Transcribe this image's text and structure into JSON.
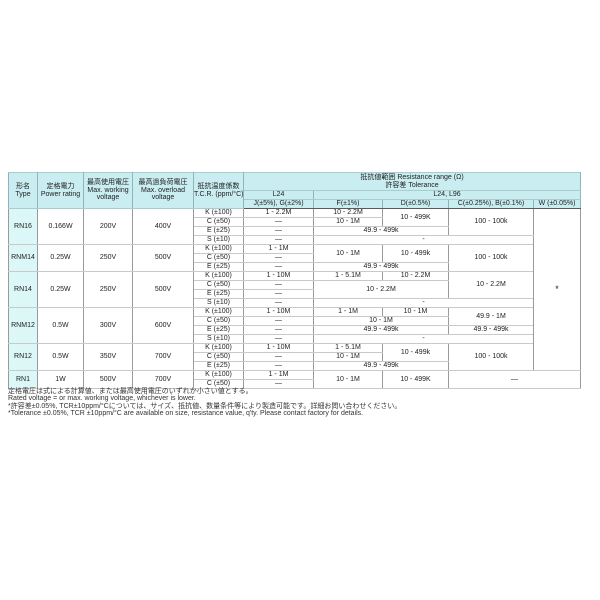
{
  "table": {
    "header": {
      "type_ja": "形名",
      "type_en": "Type",
      "power_ja": "定格電力",
      "power_en": "Power rating",
      "working_ja": "最高使用電圧",
      "working_en1": "Max. working",
      "working_en2": "voltage",
      "overload_ja": "最高過負荷電圧",
      "overload_en1": "Max. overload",
      "overload_en2": "voltage",
      "tcr_ja": "抵抗温度係数",
      "tcr_en": "T.C.R. (ppm/°C)",
      "range_title": "抵抗値範囲 Resistance range (Ω)",
      "tolerance_title": "許容差 Tolerance",
      "group_l24": "L24",
      "group_l24_l96": "L24, L96",
      "tol_jg": "J(±5%), G(±2%)",
      "tol_f": "F(±1%)",
      "tol_d": "D(±0.5%)",
      "tol_cb": "C(±0.25%), B(±0.1%)",
      "tol_w": "W (±0.05%)"
    },
    "rows": [
      {
        "group": true,
        "cells": [
          {
            "t": "RN16",
            "rs": 4,
            "c": "type"
          },
          {
            "t": "0.166W",
            "rs": 4
          },
          {
            "t": "200V",
            "rs": 4
          },
          {
            "t": "400V",
            "rs": 4
          },
          {
            "t": "K (±100)"
          },
          {
            "t": "1 - 2.2M"
          },
          {
            "t": "10 - 2.2M"
          },
          {
            "t": "10 - 499K",
            "rs": 2
          },
          {
            "t": "100 - 100k",
            "rs": 3
          },
          {
            "t": "*",
            "rs": 18,
            "c": "star"
          }
        ]
      },
      {
        "cells": [
          {
            "t": "C (±50)"
          },
          {
            "t": "—"
          },
          {
            "t": "10 - 1M"
          }
        ]
      },
      {
        "cells": [
          {
            "t": "E (±25)"
          },
          {
            "t": "—"
          },
          {
            "t": "49.9 - 499k",
            "cs": 2
          }
        ]
      },
      {
        "cells": [
          {
            "t": "S (±10)"
          },
          {
            "t": "—"
          },
          {
            "t": "-",
            "cs": 3
          }
        ]
      },
      {
        "group": true,
        "cells": [
          {
            "t": "RNM14",
            "rs": 3,
            "c": "type"
          },
          {
            "t": "0.25W",
            "rs": 3
          },
          {
            "t": "250V",
            "rs": 3
          },
          {
            "t": "500V",
            "rs": 3
          },
          {
            "t": "K (±100)"
          },
          {
            "t": "1 - 1M"
          },
          {
            "t": "10 - 1M",
            "rs": 2
          },
          {
            "t": "10 - 499k",
            "rs": 2
          },
          {
            "t": "100 - 100k",
            "rs": 3
          }
        ]
      },
      {
        "cells": [
          {
            "t": "C (±50)"
          },
          {
            "t": "—"
          }
        ]
      },
      {
        "cells": [
          {
            "t": "E (±25)"
          },
          {
            "t": "—"
          },
          {
            "t": "49.9 - 499k",
            "cs": 2
          }
        ]
      },
      {
        "group": true,
        "cells": [
          {
            "t": "RN14",
            "rs": 4,
            "c": "type"
          },
          {
            "t": "0.25W",
            "rs": 4
          },
          {
            "t": "250V",
            "rs": 4
          },
          {
            "t": "500V",
            "rs": 4
          },
          {
            "t": "K (±100)"
          },
          {
            "t": "1 - 10M"
          },
          {
            "t": "1 - 5.1M"
          },
          {
            "t": "10 - 2.2M"
          },
          {
            "t": "10 - 2.2M",
            "rs": 3
          }
        ]
      },
      {
        "cells": [
          {
            "t": "C (±50)"
          },
          {
            "t": "—"
          },
          {
            "t": "10 - 2.2M",
            "cs": 2,
            "rs": 2
          }
        ]
      },
      {
        "cells": [
          {
            "t": "E (±25)"
          },
          {
            "t": "—"
          }
        ]
      },
      {
        "cells": [
          {
            "t": "S (±10)"
          },
          {
            "t": "—"
          },
          {
            "t": "-",
            "cs": 3
          }
        ]
      },
      {
        "group": true,
        "cells": [
          {
            "t": "RNM12",
            "rs": 4,
            "c": "type"
          },
          {
            "t": "0.5W",
            "rs": 4
          },
          {
            "t": "300V",
            "rs": 4
          },
          {
            "t": "600V",
            "rs": 4
          },
          {
            "t": "K (±100)"
          },
          {
            "t": "1 - 10M"
          },
          {
            "t": "1 - 1M"
          },
          {
            "t": "10 - 1M"
          },
          {
            "t": "49.9 - 1M",
            "rs": 2
          }
        ]
      },
      {
        "cells": [
          {
            "t": "C (±50)"
          },
          {
            "t": "—"
          },
          {
            "t": "10 - 1M",
            "cs": 2
          }
        ]
      },
      {
        "cells": [
          {
            "t": "E (±25)"
          },
          {
            "t": "—"
          },
          {
            "t": "49.9 - 499k",
            "cs": 2
          },
          {
            "t": "49.9 - 499k"
          }
        ]
      },
      {
        "cells": [
          {
            "t": "S (±10)"
          },
          {
            "t": "—"
          },
          {
            "t": "-",
            "cs": 3
          }
        ]
      },
      {
        "group": true,
        "cells": [
          {
            "t": "RN12",
            "rs": 3,
            "c": "type"
          },
          {
            "t": "0.5W",
            "rs": 3
          },
          {
            "t": "350V",
            "rs": 3
          },
          {
            "t": "700V",
            "rs": 3
          },
          {
            "t": "K (±100)"
          },
          {
            "t": "1 - 10M"
          },
          {
            "t": "1 - 5.1M"
          },
          {
            "t": "10 - 499k",
            "rs": 2
          },
          {
            "t": "100 - 100k",
            "rs": 3
          }
        ]
      },
      {
        "cells": [
          {
            "t": "C (±50)"
          },
          {
            "t": "—"
          },
          {
            "t": "10 - 1M"
          }
        ]
      },
      {
        "cells": [
          {
            "t": "E (±25)"
          },
          {
            "t": "—"
          },
          {
            "t": "49.9 - 499k",
            "cs": 2
          }
        ]
      },
      {
        "group": true,
        "cells": [
          {
            "t": "RN1",
            "rs": 2,
            "c": "type"
          },
          {
            "t": "1W",
            "rs": 2
          },
          {
            "t": "500V",
            "rs": 2
          },
          {
            "t": "700V",
            "rs": 2
          },
          {
            "t": "K (±100)"
          },
          {
            "t": "1 - 1M"
          },
          {
            "t": "10 - 1M",
            "rs": 2
          },
          {
            "t": "10 - 499K",
            "rs": 2
          },
          {
            "t": "—",
            "cs": 2,
            "rs": 2
          }
        ]
      },
      {
        "cells": [
          {
            "t": "C (±50)"
          },
          {
            "t": "—"
          }
        ]
      }
    ]
  },
  "footnotes": [
    "定格電圧は式による計算値、または最高使用電圧のいずれか小さい値とする。",
    "Rated voltage = or max. working voltage, whichever is lower.",
    "*許容差±0.05%, TCR±10ppm/°Cについては、サイズ、抵抗値、数量条件等により製造可能です。詳細お問い合わせください。",
    "*Tolerance ±0.05%, TCR ±10ppm/°C are available on size, resistance value, q'ty. Please contact factory for details."
  ],
  "colors": {
    "header_bg": "#c9edf0",
    "type_cell_bg": "#dcf7f8",
    "grid_line": "#9a9a9a",
    "outer_border": "#5a5a5a"
  }
}
